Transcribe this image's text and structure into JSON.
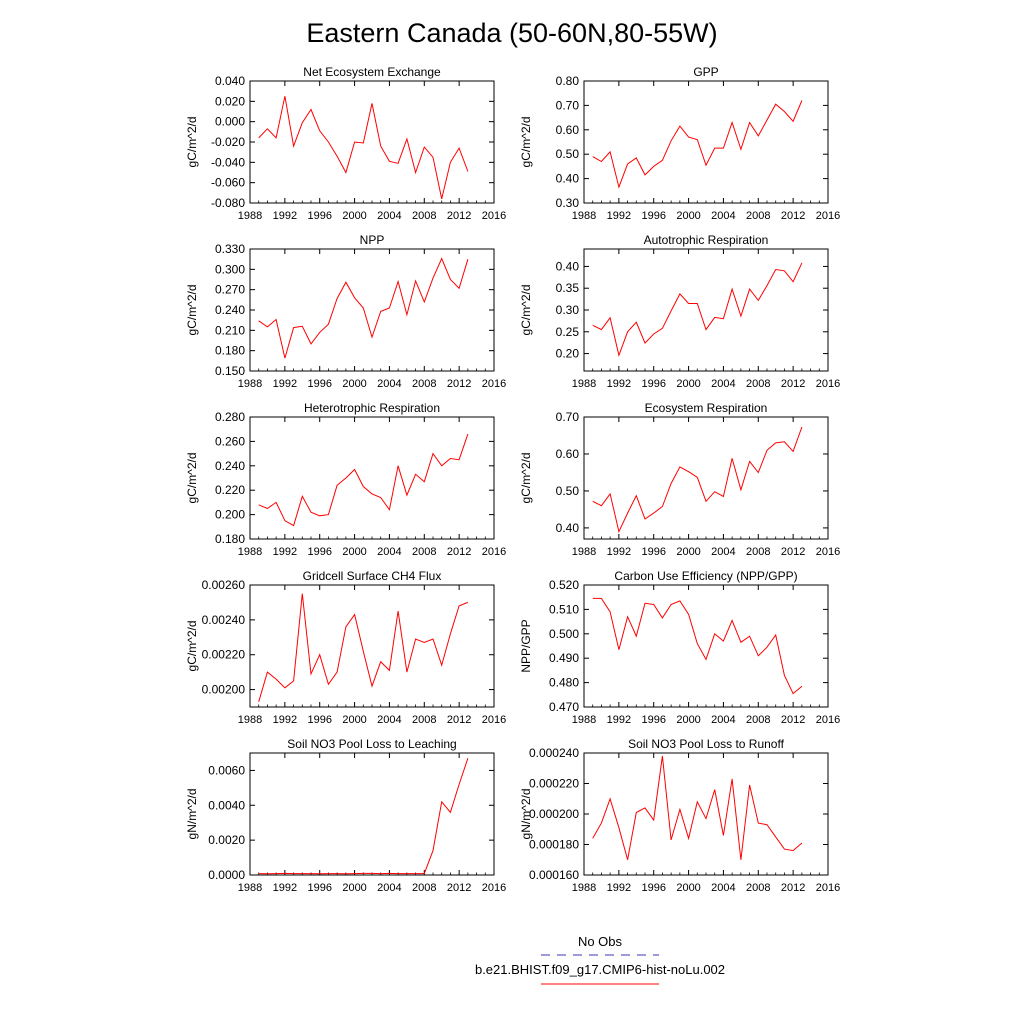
{
  "title": "Eastern Canada (50-60N,80-55W)",
  "colors": {
    "model": "#ff0000",
    "obs": "#3a3aa8",
    "axis": "#000000"
  },
  "legend": {
    "obs_label": "No Obs",
    "model_label": "b.e21.BHIST.f09_g17.CMIP6-hist-noLu.002"
  },
  "chart_data": [
    {
      "type": "line",
      "title": "Net Ecosystem Exchange",
      "ylabel": "gC/m^2/d",
      "xlim": [
        1988,
        2016
      ],
      "xticks": [
        1988,
        1992,
        1996,
        2000,
        2004,
        2008,
        2012,
        2016
      ],
      "ylim": [
        -0.08,
        0.04
      ],
      "yticks": [
        -0.08,
        -0.06,
        -0.04,
        -0.02,
        0.0,
        0.02,
        0.04
      ],
      "ytick_labels": [
        "-0.080",
        "-0.060",
        "-0.040",
        "-0.020",
        "0.000",
        "0.020",
        "0.040"
      ],
      "x": [
        1989,
        1990,
        1991,
        1992,
        1993,
        1994,
        1995,
        1996,
        1997,
        1998,
        1999,
        2000,
        2001,
        2002,
        2003,
        2004,
        2005,
        2006,
        2007,
        2008,
        2009,
        2010,
        2011,
        2012,
        2013
      ],
      "series": [
        {
          "values": [
            -0.016,
            -0.007,
            -0.016,
            0.025,
            -0.024,
            -0.001,
            0.012,
            -0.009,
            -0.02,
            -0.034,
            -0.05,
            -0.02,
            -0.021,
            0.018,
            -0.024,
            -0.039,
            -0.041,
            -0.017,
            -0.05,
            -0.025,
            -0.035,
            -0.076,
            -0.04,
            -0.026,
            -0.049
          ]
        }
      ]
    },
    {
      "type": "line",
      "title": "GPP",
      "ylabel": "gC/m^2/d",
      "xlim": [
        1988,
        2016
      ],
      "xticks": [
        1988,
        1992,
        1996,
        2000,
        2004,
        2008,
        2012,
        2016
      ],
      "ylim": [
        0.3,
        0.8
      ],
      "yticks": [
        0.3,
        0.4,
        0.5,
        0.6,
        0.7,
        0.8
      ],
      "ytick_labels": [
        "0.30",
        "0.40",
        "0.50",
        "0.60",
        "0.70",
        "0.80"
      ],
      "x": [
        1989,
        1990,
        1991,
        1992,
        1993,
        1994,
        1995,
        1996,
        1997,
        1998,
        1999,
        2000,
        2001,
        2002,
        2003,
        2004,
        2005,
        2006,
        2007,
        2008,
        2009,
        2010,
        2011,
        2012,
        2013
      ],
      "series": [
        {
          "values": [
            0.49,
            0.47,
            0.51,
            0.365,
            0.46,
            0.485,
            0.415,
            0.45,
            0.475,
            0.555,
            0.615,
            0.57,
            0.56,
            0.455,
            0.525,
            0.525,
            0.63,
            0.52,
            0.63,
            0.575,
            0.64,
            0.705,
            0.675,
            0.635,
            0.72
          ]
        }
      ]
    },
    {
      "type": "line",
      "title": "NPP",
      "ylabel": "gC/m^2/d",
      "xlim": [
        1988,
        2016
      ],
      "xticks": [
        1988,
        1992,
        1996,
        2000,
        2004,
        2008,
        2012,
        2016
      ],
      "ylim": [
        0.15,
        0.33
      ],
      "yticks": [
        0.15,
        0.18,
        0.21,
        0.24,
        0.27,
        0.3,
        0.33
      ],
      "ytick_labels": [
        "0.150",
        "0.180",
        "0.210",
        "0.240",
        "0.270",
        "0.300",
        "0.330"
      ],
      "x": [
        1989,
        1990,
        1991,
        1992,
        1993,
        1994,
        1995,
        1996,
        1997,
        1998,
        1999,
        2000,
        2001,
        2002,
        2003,
        2004,
        2005,
        2006,
        2007,
        2008,
        2009,
        2010,
        2011,
        2012,
        2013
      ],
      "series": [
        {
          "values": [
            0.224,
            0.215,
            0.226,
            0.169,
            0.214,
            0.216,
            0.19,
            0.207,
            0.219,
            0.257,
            0.281,
            0.258,
            0.243,
            0.2,
            0.238,
            0.243,
            0.282,
            0.233,
            0.283,
            0.252,
            0.287,
            0.316,
            0.285,
            0.272,
            0.315
          ]
        }
      ]
    },
    {
      "type": "line",
      "title": "Autotrophic Respiration",
      "ylabel": "gC/m^2/d",
      "xlim": [
        1988,
        2016
      ],
      "xticks": [
        1988,
        1992,
        1996,
        2000,
        2004,
        2008,
        2012,
        2016
      ],
      "ylim": [
        0.16,
        0.44
      ],
      "yticks": [
        0.2,
        0.25,
        0.3,
        0.35,
        0.4
      ],
      "ytick_labels": [
        "0.20",
        "0.25",
        "0.30",
        "0.35",
        "0.40"
      ],
      "x": [
        1989,
        1990,
        1991,
        1992,
        1993,
        1994,
        1995,
        1996,
        1997,
        1998,
        1999,
        2000,
        2001,
        2002,
        2003,
        2004,
        2005,
        2006,
        2007,
        2008,
        2009,
        2010,
        2011,
        2012,
        2013
      ],
      "series": [
        {
          "values": [
            0.265,
            0.255,
            0.282,
            0.196,
            0.25,
            0.272,
            0.224,
            0.245,
            0.258,
            0.298,
            0.337,
            0.315,
            0.315,
            0.255,
            0.283,
            0.28,
            0.348,
            0.286,
            0.348,
            0.322,
            0.356,
            0.393,
            0.39,
            0.365,
            0.408
          ]
        }
      ]
    },
    {
      "type": "line",
      "title": "Heterotrophic Respiration",
      "ylabel": "gC/m^2/d",
      "xlim": [
        1988,
        2016
      ],
      "xticks": [
        1988,
        1992,
        1996,
        2000,
        2004,
        2008,
        2012,
        2016
      ],
      "ylim": [
        0.18,
        0.28
      ],
      "yticks": [
        0.18,
        0.2,
        0.22,
        0.24,
        0.26,
        0.28
      ],
      "ytick_labels": [
        "0.180",
        "0.200",
        "0.220",
        "0.240",
        "0.260",
        "0.280"
      ],
      "x": [
        1989,
        1990,
        1991,
        1992,
        1993,
        1994,
        1995,
        1996,
        1997,
        1998,
        1999,
        2000,
        2001,
        2002,
        2003,
        2004,
        2005,
        2006,
        2007,
        2008,
        2009,
        2010,
        2011,
        2012,
        2013
      ],
      "series": [
        {
          "values": [
            0.208,
            0.205,
            0.21,
            0.195,
            0.191,
            0.215,
            0.202,
            0.199,
            0.2,
            0.224,
            0.23,
            0.237,
            0.223,
            0.217,
            0.214,
            0.204,
            0.24,
            0.216,
            0.233,
            0.227,
            0.25,
            0.24,
            0.246,
            0.245,
            0.266
          ]
        }
      ]
    },
    {
      "type": "line",
      "title": "Ecosystem Respiration",
      "ylabel": "gC/m^2/d",
      "xlim": [
        1988,
        2016
      ],
      "xticks": [
        1988,
        1992,
        1996,
        2000,
        2004,
        2008,
        2012,
        2016
      ],
      "ylim": [
        0.37,
        0.7
      ],
      "yticks": [
        0.4,
        0.5,
        0.6,
        0.7
      ],
      "ytick_labels": [
        "0.40",
        "0.50",
        "0.60",
        "0.70"
      ],
      "x": [
        1989,
        1990,
        1991,
        1992,
        1993,
        1994,
        1995,
        1996,
        1997,
        1998,
        1999,
        2000,
        2001,
        2002,
        2003,
        2004,
        2005,
        2006,
        2007,
        2008,
        2009,
        2010,
        2011,
        2012,
        2013
      ],
      "series": [
        {
          "values": [
            0.472,
            0.46,
            0.492,
            0.39,
            0.44,
            0.487,
            0.424,
            0.44,
            0.458,
            0.52,
            0.565,
            0.552,
            0.537,
            0.472,
            0.498,
            0.485,
            0.588,
            0.503,
            0.58,
            0.55,
            0.61,
            0.63,
            0.633,
            0.607,
            0.673
          ]
        }
      ]
    },
    {
      "type": "line",
      "title": "Gridcell Surface CH4 Flux",
      "ylabel": "gC/m^2/d",
      "xlim": [
        1988,
        2016
      ],
      "xticks": [
        1988,
        1992,
        1996,
        2000,
        2004,
        2008,
        2012,
        2016
      ],
      "ylim": [
        0.0019,
        0.0026
      ],
      "yticks": [
        0.002,
        0.0022,
        0.0024,
        0.0026
      ],
      "ytick_labels": [
        "0.00200",
        "0.00220",
        "0.00240",
        "0.00260"
      ],
      "x": [
        1989,
        1990,
        1991,
        1992,
        1993,
        1994,
        1995,
        1996,
        1997,
        1998,
        1999,
        2000,
        2001,
        2002,
        2003,
        2004,
        2005,
        2006,
        2007,
        2008,
        2009,
        2010,
        2011,
        2012,
        2013
      ],
      "series": [
        {
          "values": [
            0.00193,
            0.0021,
            0.00206,
            0.00201,
            0.00205,
            0.00255,
            0.00209,
            0.0022,
            0.00203,
            0.0021,
            0.00236,
            0.00243,
            0.00222,
            0.00202,
            0.00216,
            0.00211,
            0.00245,
            0.0021,
            0.00229,
            0.00227,
            0.00229,
            0.00214,
            0.00232,
            0.00248,
            0.0025
          ]
        }
      ]
    },
    {
      "type": "line",
      "title": "Carbon Use Efficiency (NPP/GPP)",
      "ylabel": "NPP/GPP",
      "xlim": [
        1988,
        2016
      ],
      "xticks": [
        1988,
        1992,
        1996,
        2000,
        2004,
        2008,
        2012,
        2016
      ],
      "ylim": [
        0.47,
        0.52
      ],
      "yticks": [
        0.47,
        0.48,
        0.49,
        0.5,
        0.51,
        0.52
      ],
      "ytick_labels": [
        "0.470",
        "0.480",
        "0.490",
        "0.500",
        "0.510",
        "0.520"
      ],
      "x": [
        1989,
        1990,
        1991,
        1992,
        1993,
        1994,
        1995,
        1996,
        1997,
        1998,
        1999,
        2000,
        2001,
        2002,
        2003,
        2004,
        2005,
        2006,
        2007,
        2008,
        2009,
        2010,
        2011,
        2012,
        2013
      ],
      "series": [
        {
          "values": [
            0.5145,
            0.5145,
            0.509,
            0.4935,
            0.507,
            0.499,
            0.5125,
            0.512,
            0.5065,
            0.512,
            0.5135,
            0.508,
            0.496,
            0.4895,
            0.5,
            0.497,
            0.5055,
            0.4965,
            0.499,
            0.491,
            0.4945,
            0.4995,
            0.483,
            0.4755,
            0.4785
          ]
        }
      ]
    },
    {
      "type": "line",
      "title": "Soil NO3 Pool Loss to Leaching",
      "ylabel": "gN/m^2/d",
      "xlim": [
        1988,
        2016
      ],
      "xticks": [
        1988,
        1992,
        1996,
        2000,
        2004,
        2008,
        2012,
        2016
      ],
      "ylim": [
        0.0,
        0.007
      ],
      "yticks": [
        0.0,
        0.002,
        0.004,
        0.006
      ],
      "ytick_labels": [
        "0.0000",
        "0.0020",
        "0.0040",
        "0.0060"
      ],
      "x": [
        1989,
        1990,
        1991,
        1992,
        1993,
        1994,
        1995,
        1996,
        1997,
        1998,
        1999,
        2000,
        2001,
        2002,
        2003,
        2004,
        2005,
        2006,
        2007,
        2008,
        2009,
        2010,
        2011,
        2012,
        2013
      ],
      "series": [
        {
          "values": [
            8e-05,
            7e-05,
            8e-05,
            9e-05,
            8e-05,
            8e-05,
            8e-05,
            7e-05,
            8e-05,
            8e-05,
            7e-05,
            8e-05,
            9e-05,
            9e-05,
            8e-05,
            9e-05,
            8e-05,
            8e-05,
            8e-05,
            8e-05,
            0.0014,
            0.0042,
            0.0036,
            0.0052,
            0.0067
          ]
        }
      ]
    },
    {
      "type": "line",
      "title": "Soil NO3 Pool Loss to Runoff",
      "ylabel": "gN/m^2/d",
      "xlim": [
        1988,
        2016
      ],
      "xticks": [
        1988,
        1992,
        1996,
        2000,
        2004,
        2008,
        2012,
        2016
      ],
      "ylim": [
        0.00016,
        0.00024
      ],
      "yticks": [
        0.00016,
        0.00018,
        0.0002,
        0.00022,
        0.00024
      ],
      "ytick_labels": [
        "0.000160",
        "0.000180",
        "0.000200",
        "0.000220",
        "0.000240"
      ],
      "x": [
        1989,
        1990,
        1991,
        1992,
        1993,
        1994,
        1995,
        1996,
        1997,
        1998,
        1999,
        2000,
        2001,
        2002,
        2003,
        2004,
        2005,
        2006,
        2007,
        2008,
        2009,
        2010,
        2011,
        2012,
        2013
      ],
      "series": [
        {
          "values": [
            0.000184,
            0.000194,
            0.00021,
            0.000191,
            0.00017,
            0.000201,
            0.000204,
            0.000196,
            0.000238,
            0.000183,
            0.000203,
            0.000184,
            0.000208,
            0.000197,
            0.000216,
            0.000186,
            0.000223,
            0.00017,
            0.000219,
            0.000194,
            0.000193,
            0.000185,
            0.000177,
            0.000176,
            0.000181
          ]
        }
      ]
    }
  ]
}
